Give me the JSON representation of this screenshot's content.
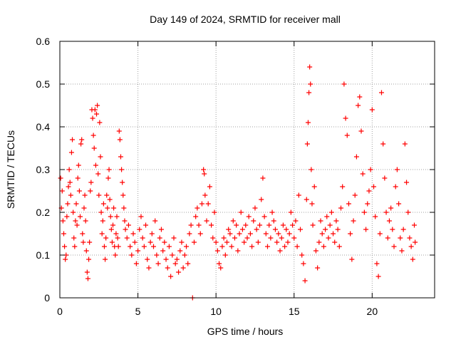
{
  "chart_data": {
    "type": "scatter",
    "title": "Day 149 of 2024, SRMTID for receiver mall",
    "xlabel": "GPS time / hours",
    "ylabel": "SRMTID / TECUs",
    "xlim": [
      0,
      24
    ],
    "ylim": [
      0,
      0.6
    ],
    "xticks": [
      0,
      5,
      10,
      15,
      20
    ],
    "xtick_labels": [
      "0",
      "5",
      "10",
      "15",
      "20"
    ],
    "yticks": [
      0,
      0.1,
      0.2,
      0.3,
      0.4,
      0.5,
      0.6
    ],
    "ytick_labels": [
      "0",
      "0.1",
      "0.2",
      "0.3",
      "0.4",
      "0.5",
      "0.6"
    ],
    "grid": true,
    "marker": "plus",
    "color": "#ff0000",
    "series": [
      {
        "name": "SRMTID",
        "points": [
          [
            0.05,
            0.28
          ],
          [
            0.1,
            0.21
          ],
          [
            0.15,
            0.25
          ],
          [
            0.2,
            0.18
          ],
          [
            0.25,
            0.15
          ],
          [
            0.3,
            0.12
          ],
          [
            0.35,
            0.09
          ],
          [
            0.4,
            0.1
          ],
          [
            0.45,
            0.19
          ],
          [
            0.5,
            0.22
          ],
          [
            0.55,
            0.26
          ],
          [
            0.6,
            0.3
          ],
          [
            0.65,
            0.27
          ],
          [
            0.7,
            0.24
          ],
          [
            0.75,
            0.34
          ],
          [
            0.8,
            0.37
          ],
          [
            0.85,
            0.2
          ],
          [
            0.9,
            0.14
          ],
          [
            0.95,
            0.12
          ],
          [
            1.0,
            0.18
          ],
          [
            1.05,
            0.22
          ],
          [
            1.1,
            0.17
          ],
          [
            1.15,
            0.28
          ],
          [
            1.2,
            0.31
          ],
          [
            1.25,
            0.25
          ],
          [
            1.3,
            0.19
          ],
          [
            1.35,
            0.36
          ],
          [
            1.4,
            0.37
          ],
          [
            1.45,
            0.15
          ],
          [
            1.5,
            0.13
          ],
          [
            1.55,
            0.21
          ],
          [
            1.6,
            0.24
          ],
          [
            1.65,
            0.18
          ],
          [
            1.7,
            0.11
          ],
          [
            1.75,
            0.06
          ],
          [
            1.8,
            0.045
          ],
          [
            1.85,
            0.09
          ],
          [
            1.9,
            0.13
          ],
          [
            1.95,
            0.25
          ],
          [
            2.0,
            0.27
          ],
          [
            2.05,
            0.44
          ],
          [
            2.1,
            0.42
          ],
          [
            2.15,
            0.38
          ],
          [
            2.2,
            0.35
          ],
          [
            2.25,
            0.44
          ],
          [
            2.3,
            0.31
          ],
          [
            2.35,
            0.43
          ],
          [
            2.4,
            0.45
          ],
          [
            2.45,
            0.29
          ],
          [
            2.5,
            0.24
          ],
          [
            2.55,
            0.41
          ],
          [
            2.6,
            0.33
          ],
          [
            2.65,
            0.2
          ],
          [
            2.7,
            0.15
          ],
          [
            2.75,
            0.18
          ],
          [
            2.8,
            0.22
          ],
          [
            2.85,
            0.12
          ],
          [
            2.9,
            0.09
          ],
          [
            2.95,
            0.14
          ],
          [
            3.0,
            0.24
          ],
          [
            3.05,
            0.21
          ],
          [
            3.1,
            0.28
          ],
          [
            3.15,
            0.3
          ],
          [
            3.2,
            0.23
          ],
          [
            3.25,
            0.19
          ],
          [
            3.3,
            0.16
          ],
          [
            3.35,
            0.13
          ],
          [
            3.4,
            0.17
          ],
          [
            3.45,
            0.21
          ],
          [
            3.5,
            0.12
          ],
          [
            3.55,
            0.1
          ],
          [
            3.6,
            0.15
          ],
          [
            3.65,
            0.19
          ],
          [
            3.7,
            0.14
          ],
          [
            3.75,
            0.12
          ],
          [
            3.8,
            0.39
          ],
          [
            3.85,
            0.37
          ],
          [
            3.9,
            0.33
          ],
          [
            3.95,
            0.3
          ],
          [
            4.0,
            0.27
          ],
          [
            4.05,
            0.24
          ],
          [
            4.1,
            0.21
          ],
          [
            4.15,
            0.18
          ],
          [
            4.2,
            0.16
          ],
          [
            4.3,
            0.14
          ],
          [
            4.4,
            0.17
          ],
          [
            4.5,
            0.12
          ],
          [
            4.6,
            0.1
          ],
          [
            4.7,
            0.15
          ],
          [
            4.8,
            0.13
          ],
          [
            4.9,
            0.08
          ],
          [
            5.0,
            0.11
          ],
          [
            5.1,
            0.16
          ],
          [
            5.2,
            0.19
          ],
          [
            5.3,
            0.14
          ],
          [
            5.4,
            0.12
          ],
          [
            5.5,
            0.17
          ],
          [
            5.6,
            0.09
          ],
          [
            5.7,
            0.07
          ],
          [
            5.8,
            0.13
          ],
          [
            5.9,
            0.15
          ],
          [
            6.0,
            0.12
          ],
          [
            6.1,
            0.18
          ],
          [
            6.2,
            0.1
          ],
          [
            6.3,
            0.08
          ],
          [
            6.4,
            0.14
          ],
          [
            6.5,
            0.16
          ],
          [
            6.6,
            0.11
          ],
          [
            6.7,
            0.13
          ],
          [
            6.8,
            0.09
          ],
          [
            6.9,
            0.07
          ],
          [
            7.0,
            0.12
          ],
          [
            7.1,
            0.05
          ],
          [
            7.2,
            0.1
          ],
          [
            7.3,
            0.14
          ],
          [
            7.4,
            0.08
          ],
          [
            7.5,
            0.09
          ],
          [
            7.6,
            0.06
          ],
          [
            7.7,
            0.11
          ],
          [
            7.8,
            0.13
          ],
          [
            7.9,
            0.07
          ],
          [
            8.0,
            0.1
          ],
          [
            8.1,
            0.12
          ],
          [
            8.2,
            0.08
          ],
          [
            8.3,
            0.15
          ],
          [
            8.4,
            0.17
          ],
          [
            8.5,
            0.0
          ],
          [
            8.6,
            0.13
          ],
          [
            8.7,
            0.19
          ],
          [
            8.8,
            0.21
          ],
          [
            8.9,
            0.17
          ],
          [
            9.0,
            0.15
          ],
          [
            9.1,
            0.22
          ],
          [
            9.2,
            0.3
          ],
          [
            9.25,
            0.29
          ],
          [
            9.3,
            0.24
          ],
          [
            9.4,
            0.18
          ],
          [
            9.5,
            0.22
          ],
          [
            9.6,
            0.26
          ],
          [
            9.7,
            0.17
          ],
          [
            9.8,
            0.14
          ],
          [
            9.9,
            0.2
          ],
          [
            10.0,
            0.13
          ],
          [
            10.1,
            0.11
          ],
          [
            10.2,
            0.08
          ],
          [
            10.3,
            0.07
          ],
          [
            10.4,
            0.12
          ],
          [
            10.5,
            0.14
          ],
          [
            10.6,
            0.1
          ],
          [
            10.7,
            0.13
          ],
          [
            10.8,
            0.16
          ],
          [
            10.9,
            0.15
          ],
          [
            11.0,
            0.12
          ],
          [
            11.1,
            0.18
          ],
          [
            11.2,
            0.14
          ],
          [
            11.3,
            0.17
          ],
          [
            11.4,
            0.11
          ],
          [
            11.5,
            0.15
          ],
          [
            11.6,
            0.2
          ],
          [
            11.7,
            0.16
          ],
          [
            11.8,
            0.13
          ],
          [
            11.9,
            0.17
          ],
          [
            12.0,
            0.14
          ],
          [
            12.1,
            0.19
          ],
          [
            12.2,
            0.15
          ],
          [
            12.3,
            0.12
          ],
          [
            12.4,
            0.18
          ],
          [
            12.5,
            0.21
          ],
          [
            12.6,
            0.16
          ],
          [
            12.7,
            0.13
          ],
          [
            12.8,
            0.17
          ],
          [
            12.9,
            0.23
          ],
          [
            13.0,
            0.28
          ],
          [
            13.1,
            0.19
          ],
          [
            13.2,
            0.15
          ],
          [
            13.3,
            0.12
          ],
          [
            13.4,
            0.17
          ],
          [
            13.5,
            0.14
          ],
          [
            13.6,
            0.2
          ],
          [
            13.7,
            0.18
          ],
          [
            13.8,
            0.16
          ],
          [
            13.9,
            0.13
          ],
          [
            14.0,
            0.15
          ],
          [
            14.1,
            0.11
          ],
          [
            14.2,
            0.14
          ],
          [
            14.3,
            0.17
          ],
          [
            14.4,
            0.12
          ],
          [
            14.5,
            0.16
          ],
          [
            14.6,
            0.13
          ],
          [
            14.7,
            0.15
          ],
          [
            14.8,
            0.2
          ],
          [
            14.9,
            0.17
          ],
          [
            15.0,
            0.14
          ],
          [
            15.1,
            0.18
          ],
          [
            15.2,
            0.12
          ],
          [
            15.3,
            0.24
          ],
          [
            15.4,
            0.16
          ],
          [
            15.5,
            0.1
          ],
          [
            15.6,
            0.08
          ],
          [
            15.7,
            0.04
          ],
          [
            15.8,
            0.23
          ],
          [
            15.85,
            0.36
          ],
          [
            15.9,
            0.41
          ],
          [
            15.95,
            0.48
          ],
          [
            16.0,
            0.54
          ],
          [
            16.05,
            0.5
          ],
          [
            16.1,
            0.3
          ],
          [
            16.15,
            0.22
          ],
          [
            16.2,
            0.17
          ],
          [
            16.3,
            0.26
          ],
          [
            16.4,
            0.11
          ],
          [
            16.5,
            0.07
          ],
          [
            16.6,
            0.13
          ],
          [
            16.7,
            0.18
          ],
          [
            16.8,
            0.15
          ],
          [
            16.9,
            0.12
          ],
          [
            17.0,
            0.16
          ],
          [
            17.1,
            0.19
          ],
          [
            17.2,
            0.14
          ],
          [
            17.3,
            0.17
          ],
          [
            17.4,
            0.2
          ],
          [
            17.5,
            0.15
          ],
          [
            17.6,
            0.13
          ],
          [
            17.7,
            0.18
          ],
          [
            17.8,
            0.16
          ],
          [
            17.9,
            0.12
          ],
          [
            18.0,
            0.21
          ],
          [
            18.1,
            0.26
          ],
          [
            18.2,
            0.5
          ],
          [
            18.3,
            0.42
          ],
          [
            18.4,
            0.38
          ],
          [
            18.5,
            0.22
          ],
          [
            18.6,
            0.15
          ],
          [
            18.7,
            0.09
          ],
          [
            18.8,
            0.18
          ],
          [
            18.9,
            0.24
          ],
          [
            19.0,
            0.33
          ],
          [
            19.1,
            0.45
          ],
          [
            19.2,
            0.47
          ],
          [
            19.3,
            0.39
          ],
          [
            19.4,
            0.29
          ],
          [
            19.5,
            0.2
          ],
          [
            19.6,
            0.16
          ],
          [
            19.7,
            0.22
          ],
          [
            19.8,
            0.25
          ],
          [
            19.9,
            0.3
          ],
          [
            20.0,
            0.44
          ],
          [
            20.1,
            0.26
          ],
          [
            20.2,
            0.19
          ],
          [
            20.3,
            0.08
          ],
          [
            20.4,
            0.05
          ],
          [
            20.5,
            0.15
          ],
          [
            20.6,
            0.48
          ],
          [
            20.7,
            0.36
          ],
          [
            20.8,
            0.28
          ],
          [
            20.9,
            0.2
          ],
          [
            21.0,
            0.14
          ],
          [
            21.1,
            0.18
          ],
          [
            21.2,
            0.21
          ],
          [
            21.3,
            0.16
          ],
          [
            21.4,
            0.12
          ],
          [
            21.5,
            0.26
          ],
          [
            21.6,
            0.3
          ],
          [
            21.7,
            0.22
          ],
          [
            21.8,
            0.14
          ],
          [
            21.9,
            0.11
          ],
          [
            22.0,
            0.16
          ],
          [
            22.1,
            0.36
          ],
          [
            22.2,
            0.27
          ],
          [
            22.3,
            0.2
          ],
          [
            22.4,
            0.14
          ],
          [
            22.5,
            0.12
          ],
          [
            22.6,
            0.09
          ],
          [
            22.7,
            0.17
          ],
          [
            22.75,
            0.13
          ]
        ]
      }
    ]
  }
}
